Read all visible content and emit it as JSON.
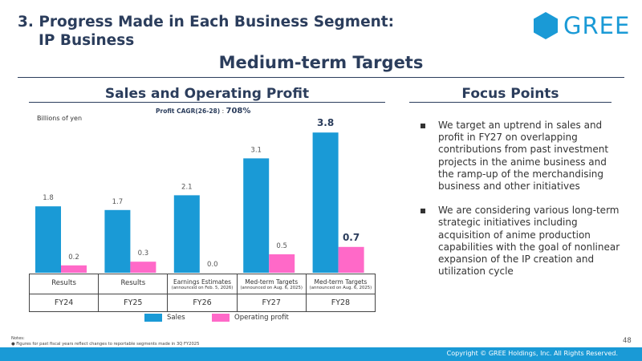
{
  "header": {
    "title_line1": "3. Progress Made in Each Business Segment:",
    "title_line2": "IP Business",
    "logo_text": "GREE",
    "subtitle": "Medium-term Targets"
  },
  "sections": {
    "left_title": "Sales and Operating Profit",
    "right_title": "Focus Points"
  },
  "chart_data": {
    "type": "bar",
    "title": "Profit CAGR(26-28)",
    "title_value": "708%",
    "ylabel": "Billions of yen",
    "categories": [
      "FY24",
      "FY25",
      "FY26",
      "FY27",
      "FY28"
    ],
    "category_sublabels": [
      "Results",
      "Results",
      "Earnings Estimates",
      "Med-term Targets",
      "Med-term Targets"
    ],
    "category_notes": [
      "",
      "",
      "(announced on Feb. 5, 2026)",
      "(announced on Aug. 6, 2025)",
      "(announced on Aug. 6, 2025)"
    ],
    "series": [
      {
        "name": "Sales",
        "color": "#1a9ad6",
        "values": [
          1.8,
          1.7,
          2.1,
          3.1,
          3.8
        ],
        "labels": [
          "1.8",
          "1.7",
          "2.1",
          "3.1",
          "3.8"
        ]
      },
      {
        "name": "Operating profit",
        "color": "#ff69c8",
        "values": [
          0.2,
          0.3,
          0.0,
          0.5,
          0.7
        ],
        "labels": [
          "0.2",
          "0.3",
          "0.0",
          "0.5",
          "0.7"
        ]
      }
    ],
    "emphasized_category": "FY28",
    "ylim": [
      0,
      4.0
    ],
    "grid": false,
    "legend": "bottom"
  },
  "focus_points": [
    "We target an uptrend in sales and profit in FY27 on overlapping contributions from past investment projects in the anime business and the ramp-up of the merchandising business and other initiatives",
    "We are considering various long-term strategic initiatives including acquisition of anime production capabilities with the goal of nonlinear expansion of the IP creation and utilization cycle"
  ],
  "notes": {
    "title": "Notes:",
    "items": [
      "Figures for past fiscal years reflect changes to reportable segments made in 3Q FY2025"
    ]
  },
  "page_number": "48",
  "footer": {
    "copyright": "Copyright © GREE Holdings, Inc. All Rights Reserved."
  }
}
